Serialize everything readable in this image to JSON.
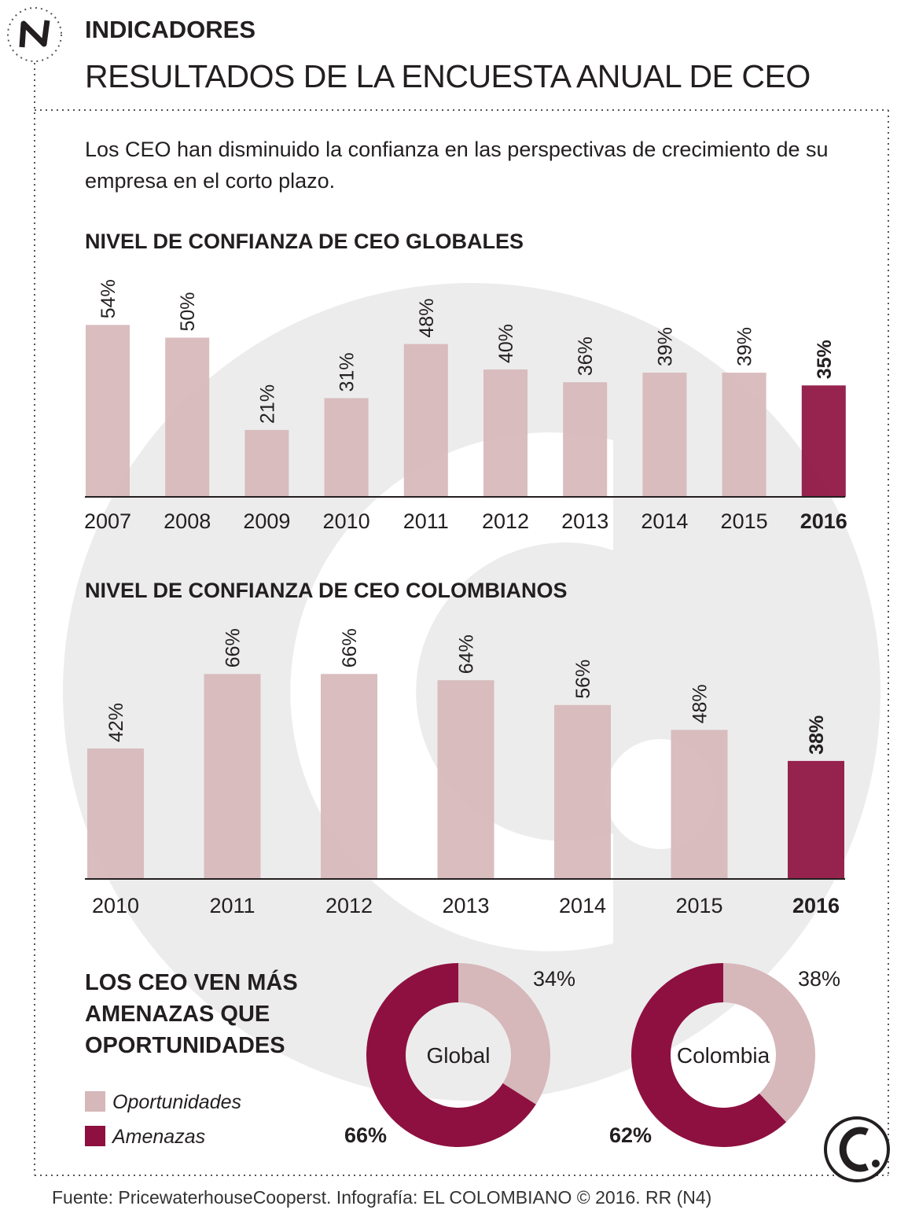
{
  "header": {
    "section": "INDICADORES",
    "title": "RESULTADOS DE LA ENCUESTA ANUAL DE CEO",
    "intro": "Los CEO han disminuido la confianza en las perspectivas de crecimiento de su empresa en el corto plazo."
  },
  "chart_data": [
    {
      "type": "bar",
      "title": "NIVEL DE CONFIANZA DE CEO GLOBALES",
      "categories": [
        "2007",
        "2008",
        "2009",
        "2010",
        "2011",
        "2012",
        "2013",
        "2014",
        "2015",
        "2016"
      ],
      "values": [
        54,
        50,
        21,
        31,
        48,
        40,
        36,
        39,
        39,
        35
      ],
      "value_labels": [
        "54%",
        "50%",
        "21%",
        "31%",
        "48%",
        "40%",
        "36%",
        "39%",
        "39%",
        "35%"
      ],
      "colors": [
        "#d6b7ba",
        "#d6b7ba",
        "#d6b7ba",
        "#d6b7ba",
        "#d6b7ba",
        "#d6b7ba",
        "#d6b7ba",
        "#d6b7ba",
        "#d6b7ba",
        "#8e1040"
      ]
    },
    {
      "type": "bar",
      "title": "NIVEL DE CONFIANZA DE CEO COLOMBIANOS",
      "categories": [
        "2010",
        "2011",
        "2012",
        "2013",
        "2014",
        "2015",
        "2016"
      ],
      "values": [
        42,
        66,
        66,
        64,
        56,
        48,
        38
      ],
      "value_labels": [
        "42%",
        "66%",
        "66%",
        "64%",
        "56%",
        "48%",
        "38%"
      ],
      "colors": [
        "#d6b7ba",
        "#d6b7ba",
        "#d6b7ba",
        "#d6b7ba",
        "#d6b7ba",
        "#d6b7ba",
        "#8e1040"
      ]
    },
    {
      "type": "donut",
      "title": "LOS CEO VEN MÁS AMENAZAS QUE OPORTUNIDADES",
      "categories": [
        "Oportunidades",
        "Amenazas"
      ],
      "colors": [
        "#d6b7ba",
        "#8e1040"
      ],
      "series": [
        {
          "name": "Global",
          "values": [
            34,
            66
          ],
          "value_labels": [
            "34%",
            "66%"
          ]
        },
        {
          "name": "Colombia",
          "values": [
            38,
            62
          ],
          "value_labels": [
            "38%",
            "62%"
          ]
        }
      ]
    }
  ],
  "footer": {
    "source": "Fuente: PricewaterhouseCooperst. Infografía: EL COLOMBIANO © 2016. RR (N4)"
  }
}
